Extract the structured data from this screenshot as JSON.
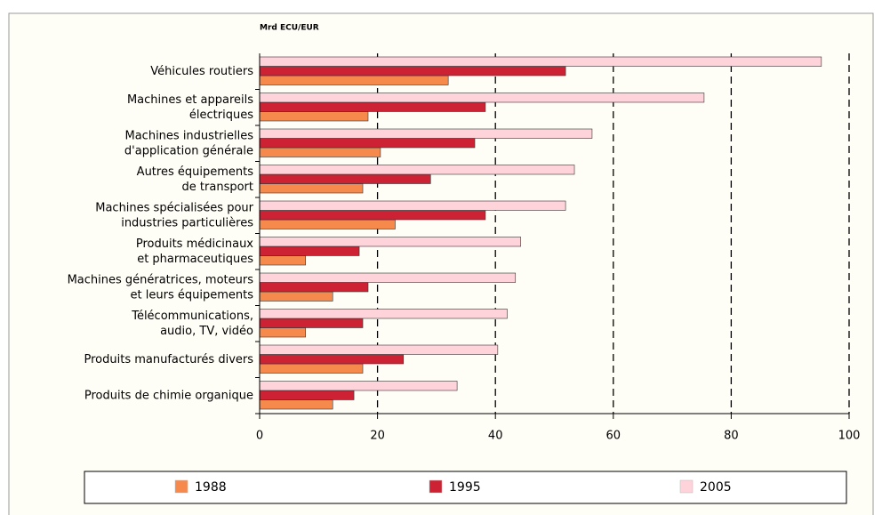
{
  "chart_data": {
    "type": "hbar",
    "unit_label": "Mrd ECU/EUR",
    "categories": [
      [
        "Véhicules routiers"
      ],
      [
        "Machines et appareils",
        "électriques"
      ],
      [
        "Machines industrielles",
        "d'application générale"
      ],
      [
        "Autres équipements",
        "de transport"
      ],
      [
        "Machines spécialisées pour",
        "industries particulières"
      ],
      [
        "Produits médicinaux",
        "et pharmaceutiques"
      ],
      [
        "Machines génératrices, moteurs",
        "et leurs équipements"
      ],
      [
        "Télécommunications,",
        "audio, TV, vidéo"
      ],
      [
        "Produits manufacturés divers"
      ],
      [
        "Produits de chimie organique"
      ]
    ],
    "series": [
      {
        "name": "1988",
        "color": "#f58a4c",
        "values": [
          32,
          18.4,
          20.5,
          17.5,
          23,
          7.8,
          12.4,
          7.8,
          17.5,
          12.4
        ]
      },
      {
        "name": "1995",
        "color": "#cc2233",
        "values": [
          51.9,
          38.3,
          36.5,
          29,
          38.3,
          16.9,
          18.4,
          17.5,
          24.4,
          16
        ]
      },
      {
        "name": "2005",
        "color": "#ffd3da",
        "values": [
          95.3,
          75.4,
          56.4,
          53.4,
          51.9,
          44.3,
          43.4,
          42,
          40.4,
          33.5
        ]
      }
    ],
    "xlim": [
      0,
      100
    ],
    "xticks": [
      0,
      20,
      40,
      60,
      80,
      100
    ],
    "grid": true
  }
}
